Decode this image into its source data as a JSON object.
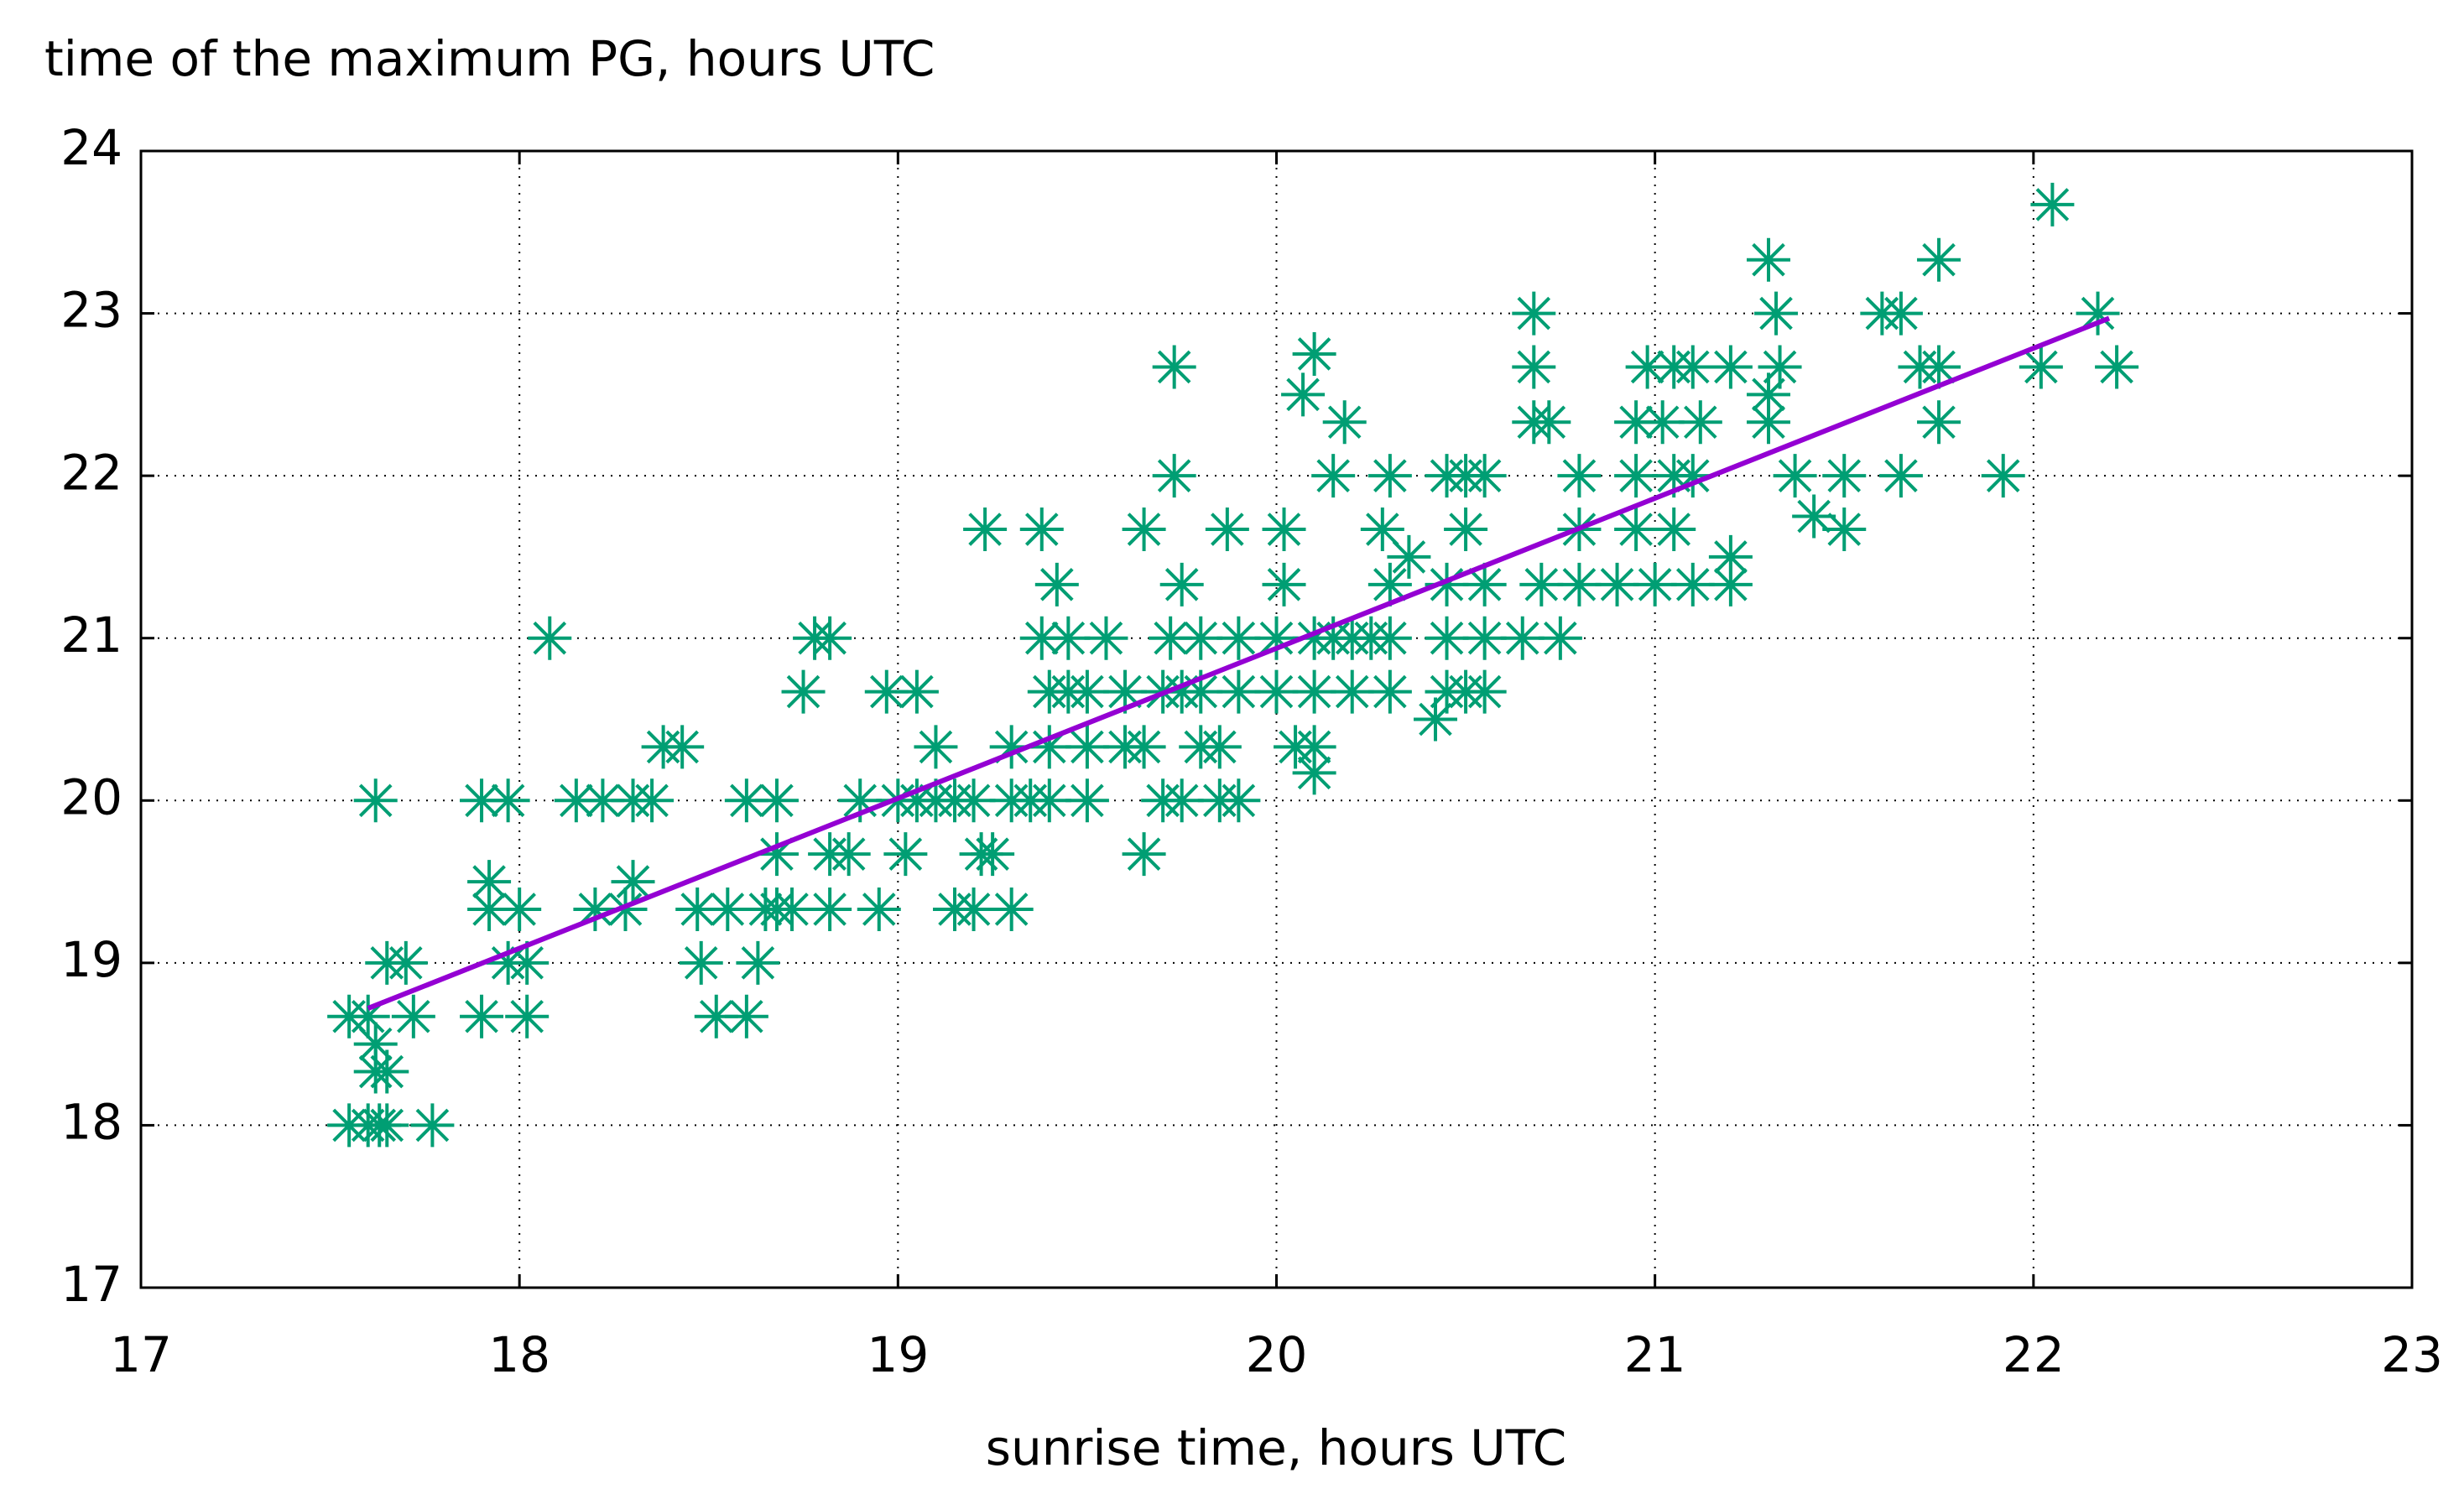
{
  "chart_data": {
    "type": "scatter",
    "ylabel": "time of the maximum PG, hours UTC",
    "xlabel": "sunrise time, hours UTC",
    "xlim": [
      17,
      23
    ],
    "xticks": [
      17,
      18,
      19,
      20,
      21,
      22,
      23
    ],
    "ylim": [
      17,
      24
    ],
    "yticks": [
      17,
      18,
      19,
      20,
      21,
      22,
      23,
      24
    ],
    "grid": true,
    "series": [
      {
        "color": "#009e73",
        "marker": "asterisk",
        "x": [
          17.55,
          17.6,
          17.63,
          17.65,
          17.77,
          17.62,
          17.65,
          17.62,
          17.55,
          17.6,
          17.72,
          17.9,
          18.02,
          18.52,
          18.6,
          17.65,
          17.7,
          17.97,
          18.02,
          18.48,
          18.63,
          17.92,
          18.0,
          18.2,
          18.28,
          18.47,
          18.55,
          18.65,
          18.68,
          18.72,
          18.82,
          18.95,
          19.15,
          19.2,
          19.3,
          17.92,
          18.3,
          18.68,
          18.82,
          18.87,
          19.02,
          19.22,
          19.25,
          19.65,
          17.62,
          17.9,
          17.97,
          18.15,
          18.22,
          18.3,
          18.35,
          18.6,
          18.68,
          18.9,
          19.0,
          19.05,
          19.1,
          19.15,
          19.2,
          19.3,
          19.35,
          19.4,
          19.5,
          19.7,
          19.75,
          19.85,
          19.9,
          20.1,
          18.38,
          18.43,
          19.1,
          19.3,
          19.4,
          19.5,
          19.6,
          19.65,
          19.8,
          19.85,
          20.05,
          20.1,
          20.42,
          18.75,
          18.97,
          19.05,
          19.4,
          19.45,
          19.5,
          19.6,
          19.7,
          19.75,
          19.8,
          19.9,
          20.0,
          20.1,
          20.2,
          20.3,
          20.45,
          20.5,
          20.55,
          18.08,
          18.78,
          18.82,
          19.38,
          19.45,
          19.55,
          19.72,
          19.8,
          19.9,
          20.0,
          20.1,
          20.15,
          20.2,
          20.25,
          20.3,
          20.45,
          20.55,
          20.65,
          20.75,
          19.42,
          19.75,
          20.02,
          20.3,
          20.45,
          20.55,
          20.7,
          20.8,
          20.9,
          21.0,
          21.1,
          21.2,
          20.35,
          21.2,
          19.23,
          19.38,
          19.65,
          19.87,
          20.02,
          20.28,
          20.5,
          20.8,
          20.95,
          21.05,
          21.5,
          21.42,
          19.73,
          20.15,
          20.3,
          20.45,
          20.5,
          20.55,
          20.8,
          20.95,
          21.05,
          21.1,
          21.37,
          21.5,
          21.65,
          21.92,
          20.18,
          20.68,
          20.72,
          20.95,
          21.02,
          21.12,
          21.3,
          21.75,
          20.07,
          21.3,
          19.73,
          20.68,
          20.98,
          21.05,
          21.1,
          21.2,
          21.33,
          21.7,
          21.75,
          22.02,
          22.22,
          20.1,
          20.68,
          21.32,
          21.6,
          21.65,
          22.17,
          21.3,
          21.75,
          22.05
        ],
        "values": [
          18,
          18,
          18,
          18,
          18,
          18.33,
          18.33,
          18.5,
          18.67,
          18.67,
          18.67,
          18.67,
          18.67,
          18.67,
          18.67,
          19,
          19,
          19,
          19,
          19,
          19,
          19.33,
          19.33,
          19.33,
          19.33,
          19.33,
          19.33,
          19.33,
          19.33,
          19.33,
          19.33,
          19.33,
          19.33,
          19.33,
          19.33,
          19.5,
          19.5,
          19.67,
          19.67,
          19.67,
          19.67,
          19.67,
          19.67,
          19.67,
          20,
          20,
          20,
          20,
          20,
          20,
          20,
          20,
          20,
          20,
          20,
          20,
          20,
          20,
          20,
          20,
          20,
          20,
          20,
          20,
          20,
          20,
          20,
          20.17,
          20.33,
          20.33,
          20.33,
          20.33,
          20.33,
          20.33,
          20.33,
          20.33,
          20.33,
          20.33,
          20.33,
          20.33,
          20.5,
          20.67,
          20.67,
          20.67,
          20.67,
          20.67,
          20.67,
          20.67,
          20.67,
          20.67,
          20.67,
          20.67,
          20.67,
          20.67,
          20.67,
          20.67,
          20.67,
          20.67,
          20.67,
          21,
          21,
          21,
          21,
          21,
          21,
          21,
          21,
          21,
          21,
          21,
          21,
          21,
          21,
          21,
          21,
          21,
          21,
          21,
          21.33,
          21.33,
          21.33,
          21.33,
          21.33,
          21.33,
          21.33,
          21.33,
          21.33,
          21.33,
          21.33,
          21.33,
          21.5,
          21.5,
          21.67,
          21.67,
          21.67,
          21.67,
          21.67,
          21.67,
          21.67,
          21.67,
          21.67,
          21.67,
          21.67,
          21.75,
          22,
          22,
          22,
          22,
          22,
          22,
          22,
          22,
          22,
          22,
          22,
          22,
          22,
          22,
          22.33,
          22.33,
          22.33,
          22.33,
          22.33,
          22.33,
          22.33,
          22.33,
          22.5,
          22.5,
          22.67,
          22.67,
          22.67,
          22.67,
          22.67,
          22.67,
          22.67,
          22.67,
          22.67,
          22.67,
          22.67,
          22.75,
          23,
          23,
          23,
          23,
          23,
          23.33,
          23.33,
          23.67
        ]
      },
      {
        "color": "#9400d3",
        "mode": "line",
        "x": [
          17.6,
          22.2
        ],
        "values": [
          18.72,
          22.97
        ]
      }
    ]
  }
}
